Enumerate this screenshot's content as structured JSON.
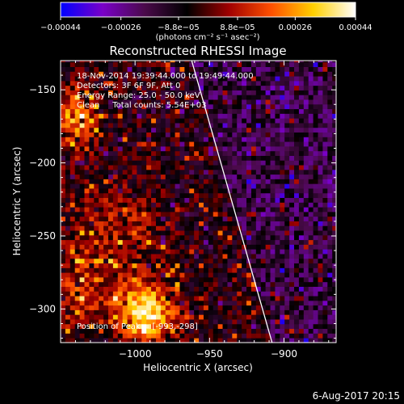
{
  "chart_data": {
    "type": "heatmap",
    "title": "Reconstructed RHESSI Image",
    "xlabel": "Heliocentric X (arcsec)",
    "ylabel": "Heliocentric Y (arcsec)",
    "xlim": [
      -1050,
      -865
    ],
    "ylim": [
      -323,
      -130
    ],
    "x_ticks": [
      -1000,
      -950,
      -900
    ],
    "x_tick_labels": [
      "−1000",
      "−950",
      "−900"
    ],
    "y_ticks": [
      -300,
      -250,
      -200,
      -150
    ],
    "y_tick_labels": [
      "−300",
      "−250",
      "−200",
      "−150"
    ],
    "colorbar": {
      "min": -0.00044,
      "max": 0.00044,
      "ticks": [
        -0.00044,
        -0.00026,
        -8.8e-05,
        8.8e-05,
        0.00026,
        0.00044
      ],
      "tick_labels": [
        "−0.00044",
        "−0.00026",
        "−8.8e−05",
        "8.8e−05",
        "0.00026",
        "0.00044"
      ],
      "unit_label": "(photons cm⁻² s⁻¹ asec⁻²)",
      "colors": [
        "#0000ff",
        "#7a00c8",
        "#4a0a4a",
        "#000000",
        "#a00000",
        "#ff5000",
        "#ffd000",
        "#ffffff"
      ]
    },
    "annotations": [
      "18-Nov-2014 19:39:44.000 to 19:49:44.000",
      "Detectors: 3F 6F 9F, Att 0",
      "Energy Range: 25.0 - 50.0 keV",
      "Clean     Total counts: 5.54E+03",
      "Position of Peak = [-993,-298]"
    ],
    "peak": {
      "x": -993,
      "y": -298
    },
    "limb_line": [
      [
        -962,
        -130
      ],
      [
        -908,
        -323
      ]
    ],
    "sources": [
      {
        "x": -993,
        "y": -302,
        "sigma": 14,
        "amplitude": 0.00044
      },
      {
        "x": -1043,
        "y": -170,
        "sigma": 13,
        "amplitude": 0.0003
      },
      {
        "x": -1015,
        "y": -245,
        "sigma": 22,
        "amplitude": 0.00014
      },
      {
        "x": -1040,
        "y": -290,
        "sigma": 18,
        "amplitude": 0.00016
      }
    ],
    "background_level": -0.00012,
    "grid": false
  },
  "footer": {
    "date": "6-Aug-2017 20:15"
  }
}
